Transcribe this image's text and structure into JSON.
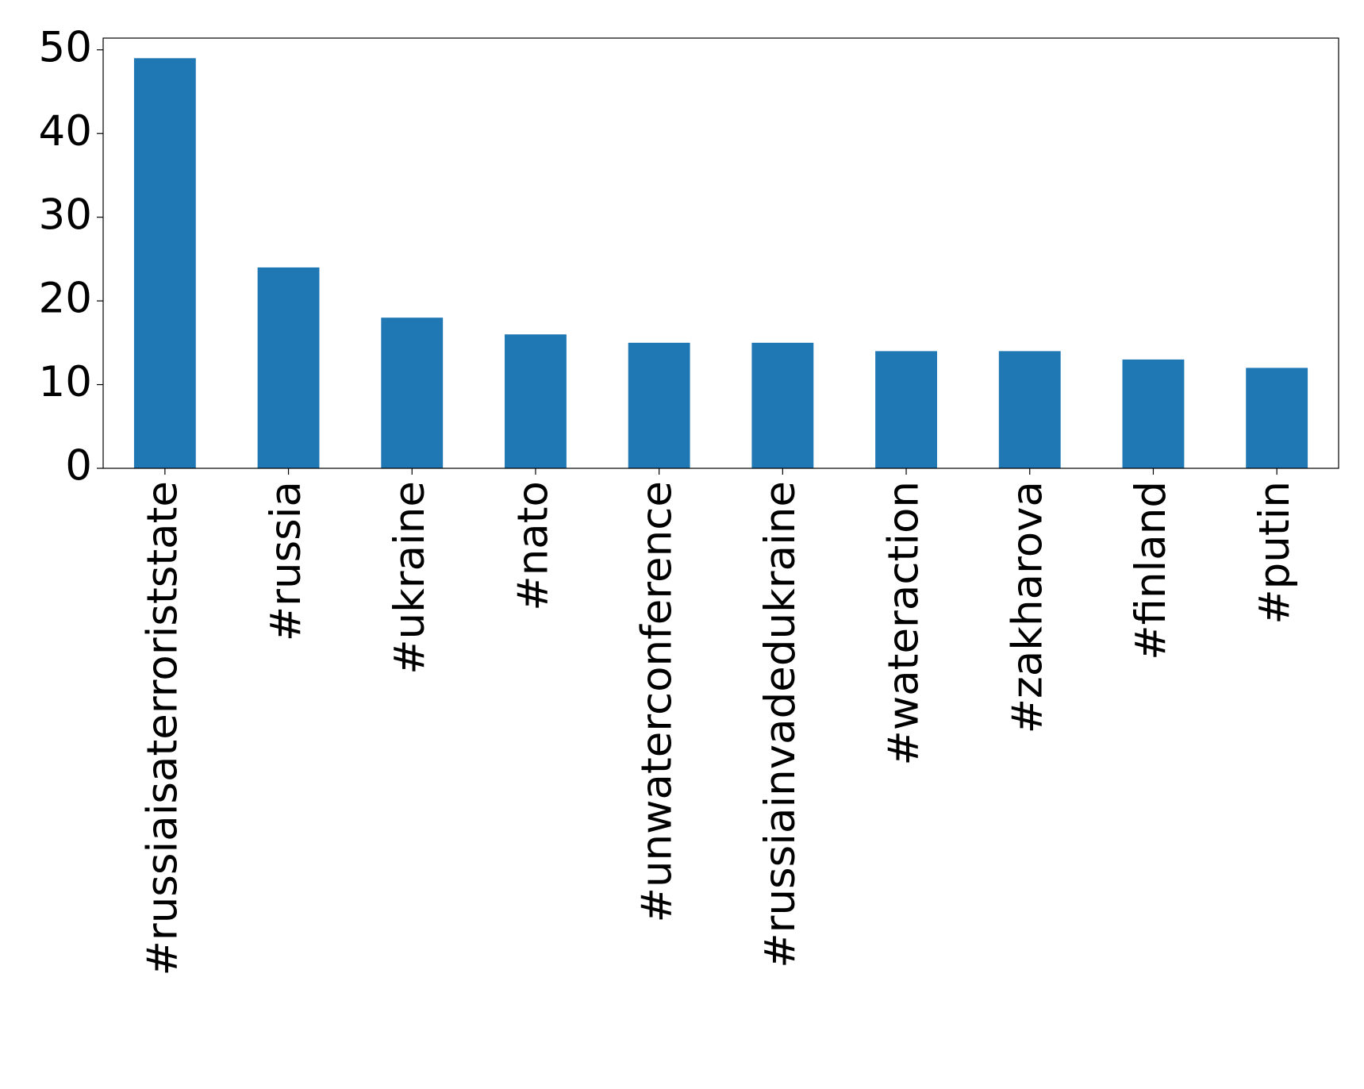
{
  "chart_data": {
    "type": "bar",
    "categories": [
      "#russiaisaterroriststate",
      "#russia",
      "#ukraine",
      "#nato",
      "#unwaterconference",
      "#russiainvadedukraine",
      "#wateraction",
      "#zakharova",
      "#finland",
      "#putin"
    ],
    "values": [
      49,
      24,
      18,
      16,
      15,
      15,
      14,
      14,
      13,
      12
    ],
    "color": "#1f77b4",
    "ylim": [
      0,
      51.4
    ],
    "yticks": [
      0,
      10,
      20,
      30,
      40,
      50
    ],
    "grid": false
  }
}
